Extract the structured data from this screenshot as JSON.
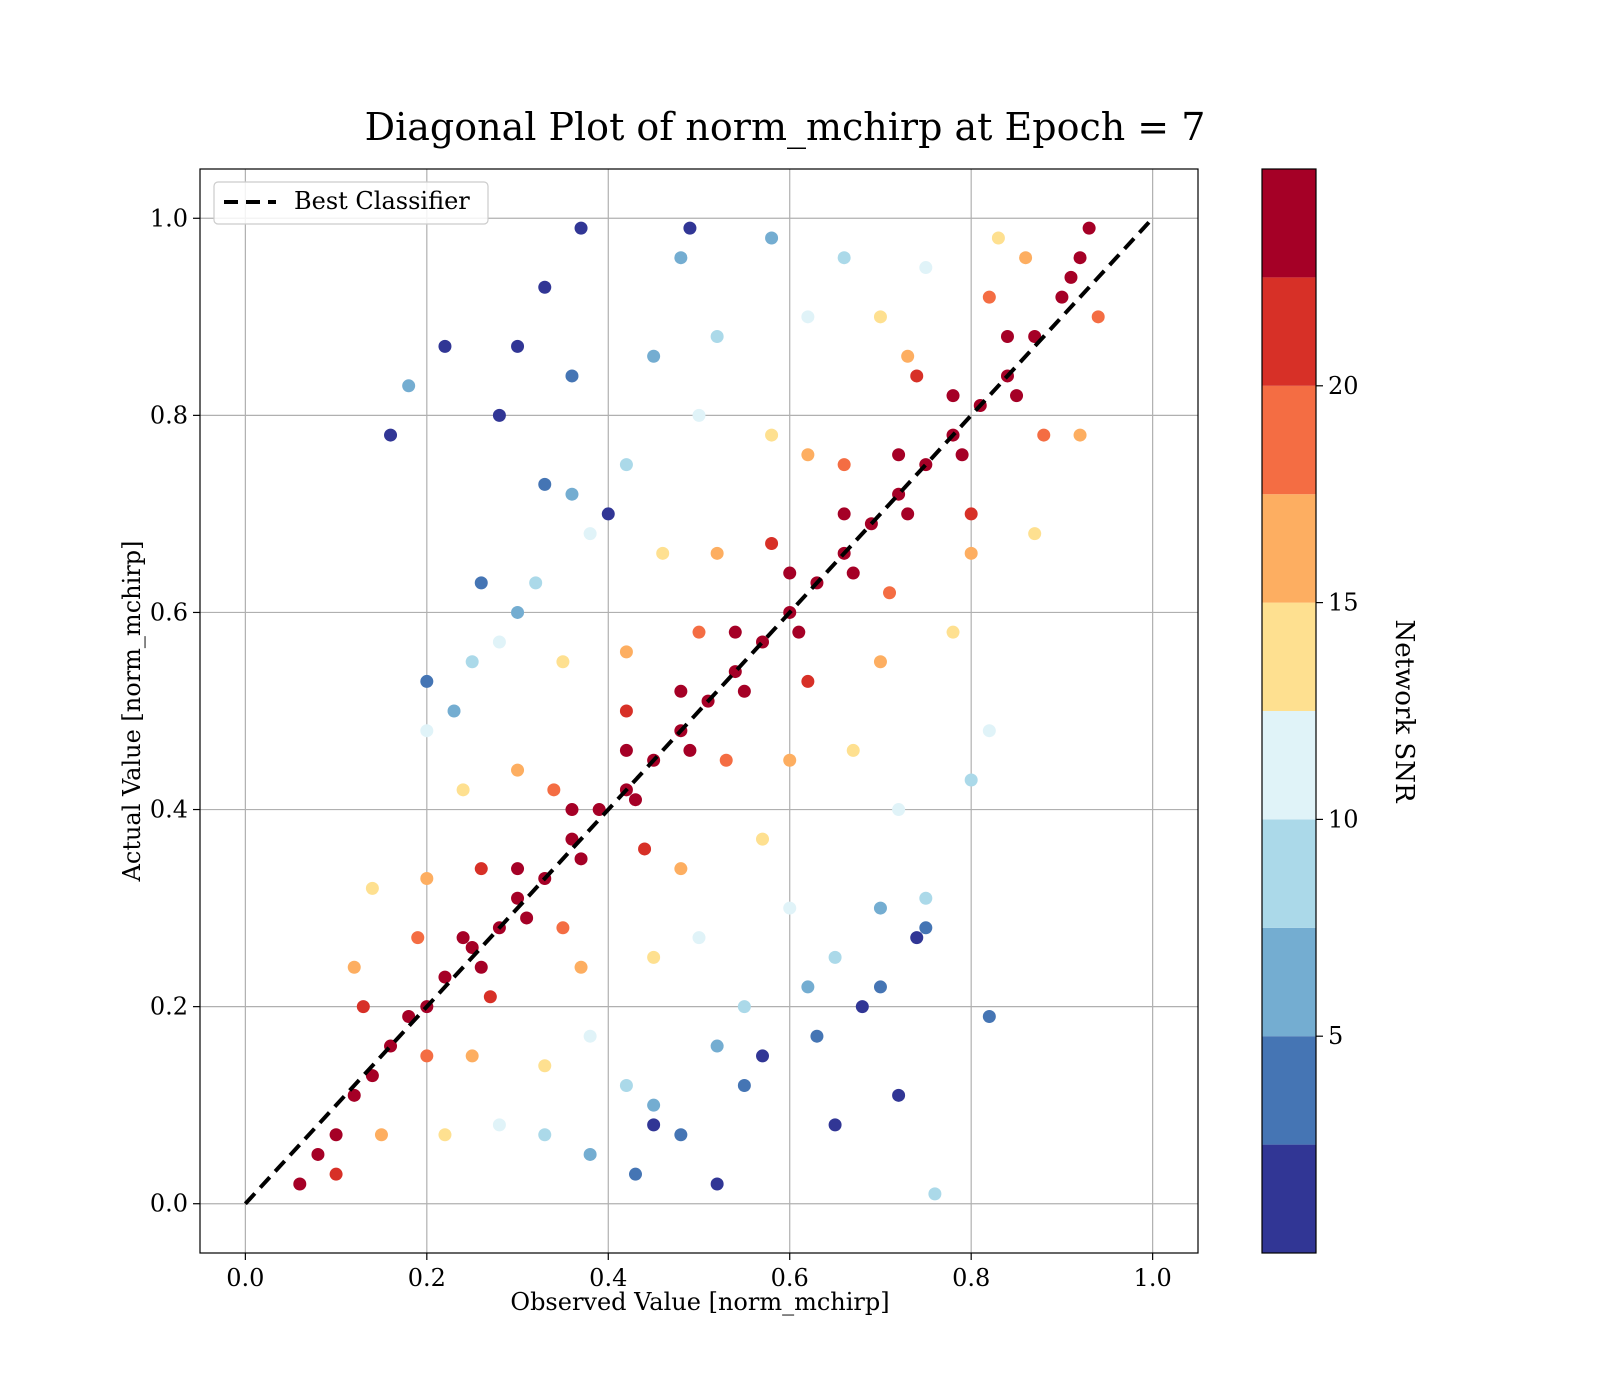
{
  "chart_data": {
    "type": "scatter",
    "title": "Diagonal Plot of norm_mchirp at Epoch = 7",
    "xlabel": "Observed Value [norm_mchirp]",
    "ylabel": "Actual Value [norm_mchirp]",
    "xlim": [
      -0.05,
      1.05
    ],
    "ylim": [
      -0.05,
      1.05
    ],
    "xticks": [
      0.0,
      0.2,
      0.4,
      0.6,
      0.8,
      1.0
    ],
    "yticks": [
      0.0,
      0.2,
      0.4,
      0.6,
      0.8,
      1.0
    ],
    "xtick_labels": [
      "0.0",
      "0.2",
      "0.4",
      "0.6",
      "0.8",
      "1.0"
    ],
    "ytick_labels": [
      "0.0",
      "0.2",
      "0.4",
      "0.6",
      "0.8",
      "1.0"
    ],
    "grid": true,
    "legend": {
      "placement": "top-left",
      "entries": [
        "Best Classifier"
      ]
    },
    "reference_line": {
      "name": "Best Classifier",
      "style": "dashed",
      "color": "#000000",
      "x": [
        0.0,
        1.0
      ],
      "y": [
        0.0,
        1.0
      ]
    },
    "colorbar": {
      "label": "Network SNR",
      "range": [
        0,
        25
      ],
      "ticks": [
        5,
        10,
        15,
        20
      ],
      "tick_labels": [
        "5",
        "10",
        "15",
        "20"
      ],
      "bins": [
        {
          "min": 0.0,
          "max": 2.5,
          "color": "#313695"
        },
        {
          "min": 2.5,
          "max": 5.0,
          "color": "#4575b4"
        },
        {
          "min": 5.0,
          "max": 7.5,
          "color": "#74add1"
        },
        {
          "min": 7.5,
          "max": 10.0,
          "color": "#abd9e9"
        },
        {
          "min": 10.0,
          "max": 12.5,
          "color": "#e0f3f8"
        },
        {
          "min": 12.5,
          "max": 15.0,
          "color": "#fee090"
        },
        {
          "min": 15.0,
          "max": 17.5,
          "color": "#fdae61"
        },
        {
          "min": 17.5,
          "max": 20.0,
          "color": "#f46d43"
        },
        {
          "min": 20.0,
          "max": 22.5,
          "color": "#d73027"
        },
        {
          "min": 22.5,
          "max": 25.0,
          "color": "#a50026"
        }
      ]
    },
    "series": [
      {
        "color_by": "Network SNR",
        "points": [
          {
            "x": 0.06,
            "y": 0.02,
            "snr": 24
          },
          {
            "x": 0.08,
            "y": 0.05,
            "snr": 24
          },
          {
            "x": 0.1,
            "y": 0.07,
            "snr": 23
          },
          {
            "x": 0.12,
            "y": 0.11,
            "snr": 24
          },
          {
            "x": 0.14,
            "y": 0.13,
            "snr": 24
          },
          {
            "x": 0.16,
            "y": 0.16,
            "snr": 23
          },
          {
            "x": 0.18,
            "y": 0.19,
            "snr": 24
          },
          {
            "x": 0.2,
            "y": 0.2,
            "snr": 24
          },
          {
            "x": 0.22,
            "y": 0.23,
            "snr": 24
          },
          {
            "x": 0.25,
            "y": 0.26,
            "snr": 24
          },
          {
            "x": 0.28,
            "y": 0.28,
            "snr": 23
          },
          {
            "x": 0.3,
            "y": 0.31,
            "snr": 24
          },
          {
            "x": 0.33,
            "y": 0.33,
            "snr": 24
          },
          {
            "x": 0.36,
            "y": 0.37,
            "snr": 24
          },
          {
            "x": 0.39,
            "y": 0.4,
            "snr": 24
          },
          {
            "x": 0.42,
            "y": 0.42,
            "snr": 23
          },
          {
            "x": 0.45,
            "y": 0.45,
            "snr": 24
          },
          {
            "x": 0.48,
            "y": 0.48,
            "snr": 24
          },
          {
            "x": 0.51,
            "y": 0.51,
            "snr": 24
          },
          {
            "x": 0.54,
            "y": 0.54,
            "snr": 23
          },
          {
            "x": 0.57,
            "y": 0.57,
            "snr": 24
          },
          {
            "x": 0.6,
            "y": 0.6,
            "snr": 24
          },
          {
            "x": 0.63,
            "y": 0.63,
            "snr": 24
          },
          {
            "x": 0.66,
            "y": 0.66,
            "snr": 23
          },
          {
            "x": 0.69,
            "y": 0.69,
            "snr": 24
          },
          {
            "x": 0.72,
            "y": 0.72,
            "snr": 24
          },
          {
            "x": 0.75,
            "y": 0.75,
            "snr": 24
          },
          {
            "x": 0.78,
            "y": 0.78,
            "snr": 23
          },
          {
            "x": 0.81,
            "y": 0.81,
            "snr": 24
          },
          {
            "x": 0.84,
            "y": 0.84,
            "snr": 24
          },
          {
            "x": 0.87,
            "y": 0.88,
            "snr": 24
          },
          {
            "x": 0.9,
            "y": 0.92,
            "snr": 24
          },
          {
            "x": 0.92,
            "y": 0.96,
            "snr": 23
          },
          {
            "x": 0.93,
            "y": 0.99,
            "snr": 24
          },
          {
            "x": 0.91,
            "y": 0.94,
            "snr": 24
          },
          {
            "x": 0.26,
            "y": 0.24,
            "snr": 24
          },
          {
            "x": 0.31,
            "y": 0.29,
            "snr": 24
          },
          {
            "x": 0.37,
            "y": 0.35,
            "snr": 24
          },
          {
            "x": 0.43,
            "y": 0.41,
            "snr": 24
          },
          {
            "x": 0.49,
            "y": 0.46,
            "snr": 24
          },
          {
            "x": 0.55,
            "y": 0.52,
            "snr": 24
          },
          {
            "x": 0.61,
            "y": 0.58,
            "snr": 24
          },
          {
            "x": 0.67,
            "y": 0.64,
            "snr": 24
          },
          {
            "x": 0.73,
            "y": 0.7,
            "snr": 24
          },
          {
            "x": 0.79,
            "y": 0.76,
            "snr": 24
          },
          {
            "x": 0.85,
            "y": 0.82,
            "snr": 24
          },
          {
            "x": 0.24,
            "y": 0.27,
            "snr": 24
          },
          {
            "x": 0.3,
            "y": 0.34,
            "snr": 24
          },
          {
            "x": 0.36,
            "y": 0.4,
            "snr": 24
          },
          {
            "x": 0.42,
            "y": 0.46,
            "snr": 24
          },
          {
            "x": 0.48,
            "y": 0.52,
            "snr": 24
          },
          {
            "x": 0.54,
            "y": 0.58,
            "snr": 24
          },
          {
            "x": 0.6,
            "y": 0.64,
            "snr": 24
          },
          {
            "x": 0.66,
            "y": 0.7,
            "snr": 24
          },
          {
            "x": 0.72,
            "y": 0.76,
            "snr": 24
          },
          {
            "x": 0.78,
            "y": 0.82,
            "snr": 24
          },
          {
            "x": 0.84,
            "y": 0.88,
            "snr": 24
          },
          {
            "x": 0.1,
            "y": 0.03,
            "snr": 21
          },
          {
            "x": 0.13,
            "y": 0.2,
            "snr": 21
          },
          {
            "x": 0.2,
            "y": 0.15,
            "snr": 19
          },
          {
            "x": 0.19,
            "y": 0.27,
            "snr": 19
          },
          {
            "x": 0.27,
            "y": 0.21,
            "snr": 21
          },
          {
            "x": 0.26,
            "y": 0.34,
            "snr": 21
          },
          {
            "x": 0.35,
            "y": 0.28,
            "snr": 19
          },
          {
            "x": 0.34,
            "y": 0.42,
            "snr": 19
          },
          {
            "x": 0.44,
            "y": 0.36,
            "snr": 21
          },
          {
            "x": 0.42,
            "y": 0.5,
            "snr": 21
          },
          {
            "x": 0.53,
            "y": 0.45,
            "snr": 19
          },
          {
            "x": 0.5,
            "y": 0.58,
            "snr": 19
          },
          {
            "x": 0.62,
            "y": 0.53,
            "snr": 21
          },
          {
            "x": 0.58,
            "y": 0.67,
            "snr": 21
          },
          {
            "x": 0.71,
            "y": 0.62,
            "snr": 19
          },
          {
            "x": 0.66,
            "y": 0.75,
            "snr": 19
          },
          {
            "x": 0.8,
            "y": 0.7,
            "snr": 21
          },
          {
            "x": 0.74,
            "y": 0.84,
            "snr": 21
          },
          {
            "x": 0.88,
            "y": 0.78,
            "snr": 19
          },
          {
            "x": 0.82,
            "y": 0.92,
            "snr": 19
          },
          {
            "x": 0.94,
            "y": 0.9,
            "snr": 19
          },
          {
            "x": 0.12,
            "y": 0.24,
            "snr": 16
          },
          {
            "x": 0.15,
            "y": 0.07,
            "snr": 16
          },
          {
            "x": 0.2,
            "y": 0.33,
            "snr": 16
          },
          {
            "x": 0.25,
            "y": 0.15,
            "snr": 16
          },
          {
            "x": 0.3,
            "y": 0.44,
            "snr": 16
          },
          {
            "x": 0.37,
            "y": 0.24,
            "snr": 16
          },
          {
            "x": 0.42,
            "y": 0.56,
            "snr": 16
          },
          {
            "x": 0.48,
            "y": 0.34,
            "snr": 16
          },
          {
            "x": 0.52,
            "y": 0.66,
            "snr": 16
          },
          {
            "x": 0.6,
            "y": 0.45,
            "snr": 16
          },
          {
            "x": 0.62,
            "y": 0.76,
            "snr": 16
          },
          {
            "x": 0.7,
            "y": 0.55,
            "snr": 16
          },
          {
            "x": 0.73,
            "y": 0.86,
            "snr": 16
          },
          {
            "x": 0.8,
            "y": 0.66,
            "snr": 16
          },
          {
            "x": 0.86,
            "y": 0.96,
            "snr": 16
          },
          {
            "x": 0.92,
            "y": 0.78,
            "snr": 16
          },
          {
            "x": 0.14,
            "y": 0.32,
            "snr": 14
          },
          {
            "x": 0.22,
            "y": 0.07,
            "snr": 14
          },
          {
            "x": 0.24,
            "y": 0.42,
            "snr": 14
          },
          {
            "x": 0.33,
            "y": 0.14,
            "snr": 14
          },
          {
            "x": 0.35,
            "y": 0.55,
            "snr": 14
          },
          {
            "x": 0.45,
            "y": 0.25,
            "snr": 14
          },
          {
            "x": 0.46,
            "y": 0.66,
            "snr": 14
          },
          {
            "x": 0.57,
            "y": 0.37,
            "snr": 14
          },
          {
            "x": 0.58,
            "y": 0.78,
            "snr": 14
          },
          {
            "x": 0.67,
            "y": 0.46,
            "snr": 14
          },
          {
            "x": 0.7,
            "y": 0.9,
            "snr": 14
          },
          {
            "x": 0.78,
            "y": 0.58,
            "snr": 14
          },
          {
            "x": 0.83,
            "y": 0.98,
            "snr": 14
          },
          {
            "x": 0.87,
            "y": 0.68,
            "snr": 14
          },
          {
            "x": 0.2,
            "y": 0.48,
            "snr": 11
          },
          {
            "x": 0.28,
            "y": 0.08,
            "snr": 11
          },
          {
            "x": 0.28,
            "y": 0.57,
            "snr": 11
          },
          {
            "x": 0.38,
            "y": 0.17,
            "snr": 11
          },
          {
            "x": 0.38,
            "y": 0.68,
            "snr": 11
          },
          {
            "x": 0.5,
            "y": 0.27,
            "snr": 11
          },
          {
            "x": 0.5,
            "y": 0.8,
            "snr": 11
          },
          {
            "x": 0.6,
            "y": 0.3,
            "snr": 11
          },
          {
            "x": 0.62,
            "y": 0.9,
            "snr": 11
          },
          {
            "x": 0.72,
            "y": 0.4,
            "snr": 11
          },
          {
            "x": 0.75,
            "y": 0.95,
            "snr": 11
          },
          {
            "x": 0.82,
            "y": 0.48,
            "snr": 11
          },
          {
            "x": 0.25,
            "y": 0.55,
            "snr": 9
          },
          {
            "x": 0.33,
            "y": 0.07,
            "snr": 9
          },
          {
            "x": 0.32,
            "y": 0.63,
            "snr": 9
          },
          {
            "x": 0.42,
            "y": 0.12,
            "snr": 9
          },
          {
            "x": 0.42,
            "y": 0.75,
            "snr": 9
          },
          {
            "x": 0.55,
            "y": 0.2,
            "snr": 9
          },
          {
            "x": 0.52,
            "y": 0.88,
            "snr": 9
          },
          {
            "x": 0.65,
            "y": 0.25,
            "snr": 9
          },
          {
            "x": 0.66,
            "y": 0.96,
            "snr": 9
          },
          {
            "x": 0.75,
            "y": 0.31,
            "snr": 9
          },
          {
            "x": 0.8,
            "y": 0.43,
            "snr": 9
          },
          {
            "x": 0.76,
            "y": 0.01,
            "snr": 9
          },
          {
            "x": 0.23,
            "y": 0.5,
            "snr": 6
          },
          {
            "x": 0.3,
            "y": 0.6,
            "snr": 6
          },
          {
            "x": 0.38,
            "y": 0.05,
            "snr": 6
          },
          {
            "x": 0.36,
            "y": 0.72,
            "snr": 6
          },
          {
            "x": 0.45,
            "y": 0.1,
            "snr": 6
          },
          {
            "x": 0.45,
            "y": 0.86,
            "snr": 6
          },
          {
            "x": 0.52,
            "y": 0.16,
            "snr": 6
          },
          {
            "x": 0.48,
            "y": 0.96,
            "snr": 6
          },
          {
            "x": 0.62,
            "y": 0.22,
            "snr": 6
          },
          {
            "x": 0.58,
            "y": 0.98,
            "snr": 6
          },
          {
            "x": 0.7,
            "y": 0.3,
            "snr": 6
          },
          {
            "x": 0.18,
            "y": 0.83,
            "snr": 6
          },
          {
            "x": 0.82,
            "y": 0.19,
            "snr": 4
          },
          {
            "x": 0.2,
            "y": 0.53,
            "snr": 4
          },
          {
            "x": 0.26,
            "y": 0.63,
            "snr": 4
          },
          {
            "x": 0.33,
            "y": 0.73,
            "snr": 4
          },
          {
            "x": 0.36,
            "y": 0.84,
            "snr": 4
          },
          {
            "x": 0.43,
            "y": 0.03,
            "snr": 4
          },
          {
            "x": 0.48,
            "y": 0.07,
            "snr": 4
          },
          {
            "x": 0.55,
            "y": 0.12,
            "snr": 4
          },
          {
            "x": 0.63,
            "y": 0.17,
            "snr": 4
          },
          {
            "x": 0.7,
            "y": 0.22,
            "snr": 4
          },
          {
            "x": 0.75,
            "y": 0.28,
            "snr": 4
          },
          {
            "x": 0.16,
            "y": 0.78,
            "snr": 1
          },
          {
            "x": 0.22,
            "y": 0.87,
            "snr": 1
          },
          {
            "x": 0.28,
            "y": 0.8,
            "snr": 1
          },
          {
            "x": 0.33,
            "y": 0.93,
            "snr": 1
          },
          {
            "x": 0.37,
            "y": 0.99,
            "snr": 1
          },
          {
            "x": 0.4,
            "y": 0.7,
            "snr": 1
          },
          {
            "x": 0.45,
            "y": 0.08,
            "snr": 1
          },
          {
            "x": 0.52,
            "y": 0.02,
            "snr": 1
          },
          {
            "x": 0.57,
            "y": 0.15,
            "snr": 1
          },
          {
            "x": 0.65,
            "y": 0.08,
            "snr": 1
          },
          {
            "x": 0.72,
            "y": 0.11,
            "snr": 1
          },
          {
            "x": 0.68,
            "y": 0.2,
            "snr": 1
          },
          {
            "x": 0.74,
            "y": 0.27,
            "snr": 1
          },
          {
            "x": 0.49,
            "y": 0.99,
            "snr": 1
          },
          {
            "x": 0.3,
            "y": 0.87,
            "snr": 1
          }
        ]
      }
    ]
  }
}
